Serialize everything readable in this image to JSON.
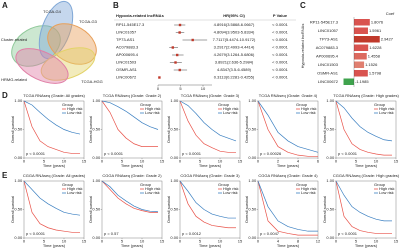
{
  "panel_labels": [
    "A",
    "B",
    "C",
    "D",
    "E"
  ],
  "venn": {
    "sets": [
      {
        "name": "Cluster-related",
        "color": "#8fc99a"
      },
      {
        "name": "TCGA-G4",
        "color": "#7fa7d6"
      },
      {
        "name": "TCGA-G3",
        "color": "#e8a05a"
      },
      {
        "name": "TCGA-HGG",
        "color": "#e3d36a"
      },
      {
        "name": "HRMG-related",
        "color": "#e07fa6"
      }
    ]
  },
  "chart_data": [
    {
      "type": "forest",
      "headers": [
        "Hypoxia-related lncRNAs",
        "HR(95% CI)",
        "P Value"
      ],
      "categories": [
        "RP11-545E17.3",
        "LINC01057",
        "TP73-AS1",
        "AC079883.3",
        "AP000695.4",
        "LINC01503",
        "OSMR-AS1",
        "LINC00672"
      ],
      "values": [
        4.8916,
        4.8094,
        7.7117,
        3.2917,
        4.2679,
        3.8921,
        4.8347,
        0.3113
      ],
      "lower": [
        3.5868,
        3.9503,
        5.4474,
        2.4993,
        3.1264,
        2.636,
        3.5,
        0.2281
      ],
      "upper": [
        6.0667,
        5.8334,
        10.9172,
        4.4414,
        5.6806,
        5.2984,
        6.4589,
        0.4255
      ],
      "value_labels": [
        "4.8916(3.5868-6.0667)",
        "4.8094(3.9503-5.8334)",
        "7.7117(5.4474-10.9172)",
        "3.2917(2.4993-4.4414)",
        "4.2679(3.1264-5.6806)",
        "3.8921(2.636-5.2984)",
        "4.8347(3.5-6.4589)",
        "0.3113(0.2281-0.4255)"
      ],
      "p_values": [
        "< 0.0001",
        "< 0.0001",
        "< 0.0001",
        "< 0.0001",
        "< 0.0001",
        "< 0.0001",
        "< 0.0001",
        "< 0.0001"
      ],
      "color": "#c0392b",
      "xlim": [
        0,
        12
      ],
      "xticks": [
        0,
        5,
        10
      ]
    },
    {
      "type": "hbar",
      "ylabel": "Hypoxia-related lncRNAs",
      "legend_title": "Coef",
      "categories": [
        "RP11-545E17.3",
        "LINC01057",
        "TP73-AS1",
        "AC079883.3",
        "AP000695.4",
        "LINC01503",
        "OSMR-AS1",
        "LINC00672"
      ],
      "values": [
        1.8076,
        1.5961,
        2.9427,
        1.6228,
        1.4558,
        1.1526,
        1.5798,
        -1.1985
      ],
      "colors": [
        "#d9534f",
        "#d9534f",
        "#c0392b",
        "#d9534f",
        "#dc6a5f",
        "#e07f70",
        "#d9534f",
        "#3fa34d"
      ],
      "xlim": [
        -1.6,
        3.2
      ]
    },
    {
      "type": "km",
      "title": "TCGA RNAseq (Grade: All grades)",
      "p_label": "p < 0.0001",
      "legend_title": "Group",
      "xlabel": "Time (years)",
      "ylabel": "Overall survival",
      "x": [
        0,
        2,
        4,
        6,
        8,
        10,
        12,
        14
      ],
      "xlim": [
        0,
        15
      ],
      "xticks": [
        0,
        5,
        10,
        15
      ],
      "ylim": [
        0,
        1
      ],
      "yticks": [
        {
          "value": 0,
          "label": "0.00"
        },
        {
          "value": 0.5,
          "label": "0.50"
        },
        {
          "value": 1,
          "label": "1.00"
        }
      ],
      "series": [
        {
          "name": "High risk",
          "color": "#e8534a",
          "values": [
            1,
            0.55,
            0.3,
            0.2,
            0.15,
            0.1,
            0.08,
            0.08
          ]
        },
        {
          "name": "Low risk",
          "color": "#3a7fc1",
          "values": [
            1,
            0.93,
            0.8,
            0.68,
            0.58,
            0.5,
            0.45,
            0.42
          ]
        }
      ]
    },
    {
      "type": "km",
      "title": "TCGA RNAseq (Grade: Grade 2)",
      "p_label": "p < 0.0001",
      "legend_title": "Group",
      "xlabel": "Time (years)",
      "ylabel": "Overall survival",
      "x": [
        0,
        2,
        4,
        6,
        8,
        10,
        12,
        14
      ],
      "xlim": [
        0,
        15
      ],
      "xticks": [
        0,
        5,
        10,
        15
      ],
      "ylim": [
        0,
        1
      ],
      "yticks": [
        {
          "value": 0,
          "label": "0.00"
        },
        {
          "value": 0.5,
          "label": "0.50"
        },
        {
          "value": 1,
          "label": "1.00"
        }
      ],
      "series": [
        {
          "name": "High risk",
          "color": "#e8534a",
          "values": [
            1,
            0.8,
            0.5,
            0.35,
            0.25,
            0.2,
            0.2,
            0.2
          ]
        },
        {
          "name": "Low risk",
          "color": "#3a7fc1",
          "values": [
            1,
            0.97,
            0.9,
            0.82,
            0.72,
            0.62,
            0.55,
            0.5
          ]
        }
      ]
    },
    {
      "type": "km",
      "title": "TCGA RNAseq (Grade: Grade 3)",
      "p_label": "p < 0.0001",
      "legend_title": "Group",
      "xlabel": "Time (years)",
      "ylabel": "Overall survival",
      "x": [
        0,
        2,
        4,
        6,
        8,
        10,
        12,
        14
      ],
      "xlim": [
        0,
        15
      ],
      "xticks": [
        0,
        5,
        10,
        15
      ],
      "ylim": [
        0,
        1
      ],
      "yticks": [
        {
          "value": 0,
          "label": "0.00"
        },
        {
          "value": 0.5,
          "label": "0.50"
        },
        {
          "value": 1,
          "label": "1.00"
        }
      ],
      "series": [
        {
          "name": "High risk",
          "color": "#e8534a",
          "values": [
            1,
            0.65,
            0.4,
            0.25,
            0.18,
            0.12,
            0.1,
            0.1
          ]
        },
        {
          "name": "Low risk",
          "color": "#3a7fc1",
          "values": [
            1,
            0.92,
            0.78,
            0.62,
            0.5,
            0.4,
            0.35,
            0.3
          ]
        }
      ]
    },
    {
      "type": "km",
      "title": "TCGA RNAseq (Grade: Grade 4)",
      "p_label": "p = 0.00026",
      "legend_title": "Group",
      "xlabel": "Time (years)",
      "ylabel": "Overall survival",
      "x": [
        0,
        1,
        2,
        3,
        4,
        5,
        6
      ],
      "xlim": [
        0,
        6
      ],
      "xticks": [
        0,
        2,
        4,
        6
      ],
      "ylim": [
        0,
        1
      ],
      "yticks": [
        {
          "value": 0,
          "label": "0.00"
        },
        {
          "value": 0.5,
          "label": "0.50"
        },
        {
          "value": 1,
          "label": "1.00"
        }
      ],
      "series": [
        {
          "name": "High risk",
          "color": "#e8534a",
          "values": [
            1,
            0.5,
            0.2,
            0.1,
            0.05,
            0.03,
            0.03
          ]
        },
        {
          "name": "Low risk",
          "color": "#3a7fc1",
          "values": [
            1,
            0.75,
            0.45,
            0.3,
            0.2,
            0.15,
            0.1
          ]
        }
      ]
    },
    {
      "type": "km",
      "title": "TCGA RNAseq (Grade: High grades)",
      "p_label": "p < 0.0001",
      "legend_title": "Group",
      "xlabel": "Time (years)",
      "ylabel": "Overall survival",
      "x": [
        0,
        2,
        4,
        6,
        8,
        10,
        12,
        14
      ],
      "xlim": [
        0,
        15
      ],
      "xticks": [
        0,
        5,
        10,
        15
      ],
      "ylim": [
        0,
        1
      ],
      "yticks": [
        {
          "value": 0,
          "label": "0.00"
        },
        {
          "value": 0.5,
          "label": "0.50"
        },
        {
          "value": 1,
          "label": "1.00"
        }
      ],
      "series": [
        {
          "name": "High risk",
          "color": "#e8534a",
          "values": [
            1,
            0.5,
            0.25,
            0.15,
            0.1,
            0.07,
            0.05,
            0.05
          ]
        },
        {
          "name": "Low risk",
          "color": "#3a7fc1",
          "values": [
            1,
            0.88,
            0.7,
            0.55,
            0.45,
            0.38,
            0.32,
            0.3
          ]
        }
      ]
    },
    {
      "type": "km",
      "title": "CGGA RNAseq (Grade: All grades)",
      "p_label": "p < 0.0001",
      "legend_title": "Group",
      "xlabel": "Time (years)",
      "ylabel": "Overall survival",
      "x": [
        0,
        2,
        4,
        6,
        8,
        10,
        12,
        14
      ],
      "xlim": [
        0,
        15
      ],
      "xticks": [
        0,
        5,
        10,
        15
      ],
      "ylim": [
        0,
        1
      ],
      "yticks": [
        {
          "value": 0,
          "label": "0.00"
        },
        {
          "value": 0.5,
          "label": "0.50"
        },
        {
          "value": 1,
          "label": "1.00"
        }
      ],
      "series": [
        {
          "name": "High risk",
          "color": "#e8534a",
          "values": [
            1,
            0.45,
            0.25,
            0.18,
            0.14,
            0.12,
            0.1,
            0.1
          ]
        },
        {
          "name": "Low risk",
          "color": "#3a7fc1",
          "values": [
            1,
            0.85,
            0.7,
            0.6,
            0.52,
            0.45,
            0.42,
            0.4
          ]
        }
      ]
    },
    {
      "type": "km",
      "title": "CGGA RNAseq (Grade: Grade 2)",
      "p_label": "p = 0.57",
      "legend_title": "Group",
      "xlabel": "Time (years)",
      "ylabel": "Overall survival",
      "x": [
        0,
        2,
        4,
        6,
        8,
        10,
        12,
        14
      ],
      "xlim": [
        0,
        15
      ],
      "xticks": [
        0,
        5,
        10,
        15
      ],
      "ylim": [
        0,
        1
      ],
      "yticks": [
        {
          "value": 0,
          "label": "0.00"
        },
        {
          "value": 0.5,
          "label": "0.50"
        },
        {
          "value": 1,
          "label": "1.00"
        }
      ],
      "series": [
        {
          "name": "High risk",
          "color": "#e8534a",
          "values": [
            1,
            0.85,
            0.7,
            0.6,
            0.52,
            0.48,
            0.45,
            0.45
          ]
        },
        {
          "name": "Low risk",
          "color": "#3a7fc1",
          "values": [
            1,
            0.9,
            0.75,
            0.65,
            0.56,
            0.5,
            0.47,
            0.46
          ]
        }
      ]
    },
    {
      "type": "km",
      "title": "CGGA RNAseq (Grade: Grade 3)",
      "p_label": "p = 0.0012",
      "legend_title": "Group",
      "xlabel": "Time (years)",
      "ylabel": "Overall survival",
      "x": [
        0,
        2,
        4,
        6,
        8,
        10,
        12,
        14
      ],
      "xlim": [
        0,
        15
      ],
      "xticks": [
        0,
        5,
        10,
        15
      ],
      "ylim": [
        0,
        1
      ],
      "yticks": [
        {
          "value": 0,
          "label": "0.00"
        },
        {
          "value": 0.5,
          "label": "0.50"
        },
        {
          "value": 1,
          "label": "1.00"
        }
      ],
      "series": [
        {
          "name": "High risk",
          "color": "#e8534a",
          "values": [
            1,
            0.6,
            0.38,
            0.28,
            0.22,
            0.2,
            0.18,
            0.18
          ]
        },
        {
          "name": "Low risk",
          "color": "#3a7fc1",
          "values": [
            1,
            0.82,
            0.62,
            0.5,
            0.42,
            0.38,
            0.35,
            0.35
          ]
        }
      ]
    },
    {
      "type": "km",
      "title": "CGGA RNAseq (Grade: Grade 4)",
      "p_label": "p = 0.0047",
      "legend_title": "Group",
      "xlabel": "Time (years)",
      "ylabel": "Overall survival",
      "x": [
        0,
        2,
        4,
        6,
        8,
        10,
        12
      ],
      "xlim": [
        0,
        12
      ],
      "xticks": [
        0,
        4,
        8,
        12
      ],
      "ylim": [
        0,
        1
      ],
      "yticks": [
        {
          "value": 0,
          "label": "0.00"
        },
        {
          "value": 0.5,
          "label": "0.50"
        },
        {
          "value": 1,
          "label": "1.00"
        }
      ],
      "series": [
        {
          "name": "High risk",
          "color": "#e8534a",
          "values": [
            1,
            0.3,
            0.12,
            0.08,
            0.05,
            0.05,
            0.05
          ]
        },
        {
          "name": "Low risk",
          "color": "#3a7fc1",
          "values": [
            1,
            0.55,
            0.3,
            0.2,
            0.15,
            0.12,
            0.12
          ]
        }
      ]
    },
    {
      "type": "km",
      "title": "CGGA RNAseq (Grade: High grades)",
      "p_label": "p < 0.0001",
      "legend_title": "Group",
      "xlabel": "Time (years)",
      "ylabel": "Overall survival",
      "x": [
        0,
        2,
        4,
        6,
        8,
        10,
        12,
        14
      ],
      "xlim": [
        0,
        15
      ],
      "xticks": [
        0,
        5,
        10,
        15
      ],
      "ylim": [
        0,
        1
      ],
      "yticks": [
        {
          "value": 0,
          "label": "0.00"
        },
        {
          "value": 0.5,
          "label": "0.50"
        },
        {
          "value": 1,
          "label": "1.00"
        }
      ],
      "series": [
        {
          "name": "High risk",
          "color": "#e8534a",
          "values": [
            1,
            0.38,
            0.2,
            0.13,
            0.1,
            0.08,
            0.08,
            0.08
          ]
        },
        {
          "name": "Low risk",
          "color": "#3a7fc1",
          "values": [
            1,
            0.75,
            0.55,
            0.45,
            0.38,
            0.33,
            0.3,
            0.3
          ]
        }
      ]
    }
  ]
}
